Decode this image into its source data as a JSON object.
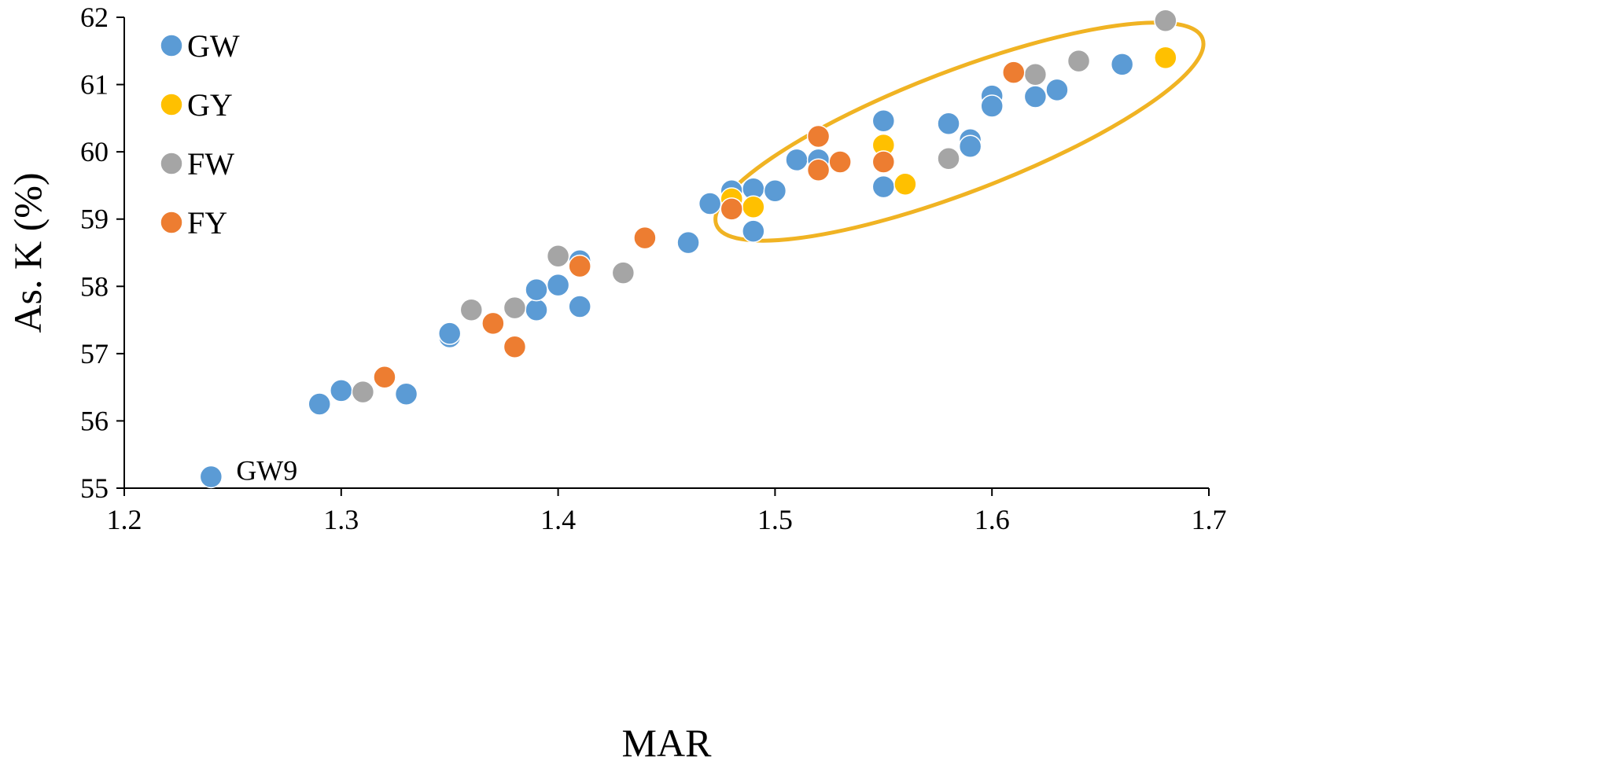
{
  "chart_data": {
    "type": "scatter",
    "title": "",
    "xlabel": "MAR",
    "ylabel": "As. K (%)",
    "xlim": [
      1.2,
      1.7
    ],
    "ylim": [
      55,
      62
    ],
    "x_tick_labels": [
      "1.2",
      "1.3",
      "1.4",
      "1.5",
      "1.6",
      "1.7"
    ],
    "y_tick_labels": [
      "55",
      "56",
      "57",
      "58",
      "59",
      "60",
      "61",
      "62"
    ],
    "grid": false,
    "legend_position": "top-left",
    "series": [
      {
        "name": "GW",
        "color": "#5B9BD5",
        "points": [
          {
            "x": 1.24,
            "y": 55.17
          },
          {
            "x": 1.29,
            "y": 56.25
          },
          {
            "x": 1.3,
            "y": 56.45
          },
          {
            "x": 1.33,
            "y": 56.4
          },
          {
            "x": 1.35,
            "y": 57.25
          },
          {
            "x": 1.35,
            "y": 57.3
          },
          {
            "x": 1.39,
            "y": 57.65
          },
          {
            "x": 1.39,
            "y": 57.95
          },
          {
            "x": 1.4,
            "y": 58.02
          },
          {
            "x": 1.41,
            "y": 57.7
          },
          {
            "x": 1.41,
            "y": 58.38
          },
          {
            "x": 1.46,
            "y": 58.65
          },
          {
            "x": 1.47,
            "y": 59.23
          },
          {
            "x": 1.48,
            "y": 59.42
          },
          {
            "x": 1.49,
            "y": 59.45
          },
          {
            "x": 1.49,
            "y": 58.82
          },
          {
            "x": 1.5,
            "y": 59.42
          },
          {
            "x": 1.51,
            "y": 59.88
          },
          {
            "x": 1.52,
            "y": 59.88
          },
          {
            "x": 1.55,
            "y": 60.46
          },
          {
            "x": 1.55,
            "y": 59.48
          },
          {
            "x": 1.58,
            "y": 60.42
          },
          {
            "x": 1.59,
            "y": 60.18
          },
          {
            "x": 1.59,
            "y": 60.08
          },
          {
            "x": 1.6,
            "y": 60.83
          },
          {
            "x": 1.6,
            "y": 60.68
          },
          {
            "x": 1.62,
            "y": 60.82
          },
          {
            "x": 1.63,
            "y": 60.92
          },
          {
            "x": 1.66,
            "y": 61.3
          }
        ]
      },
      {
        "name": "GY",
        "color": "#FFC000",
        "points": [
          {
            "x": 1.48,
            "y": 59.3
          },
          {
            "x": 1.49,
            "y": 59.18
          },
          {
            "x": 1.55,
            "y": 60.1
          },
          {
            "x": 1.56,
            "y": 59.52
          },
          {
            "x": 1.68,
            "y": 61.4
          }
        ]
      },
      {
        "name": "FW",
        "color": "#A5A5A5",
        "points": [
          {
            "x": 1.31,
            "y": 56.43
          },
          {
            "x": 1.36,
            "y": 57.65
          },
          {
            "x": 1.38,
            "y": 57.68
          },
          {
            "x": 1.4,
            "y": 58.45
          },
          {
            "x": 1.43,
            "y": 58.2
          },
          {
            "x": 1.58,
            "y": 59.9
          },
          {
            "x": 1.62,
            "y": 61.15
          },
          {
            "x": 1.64,
            "y": 61.35
          },
          {
            "x": 1.68,
            "y": 61.95
          }
        ]
      },
      {
        "name": "FY",
        "color": "#ED7D31",
        "points": [
          {
            "x": 1.32,
            "y": 56.65
          },
          {
            "x": 1.37,
            "y": 57.45
          },
          {
            "x": 1.38,
            "y": 57.1
          },
          {
            "x": 1.41,
            "y": 58.3
          },
          {
            "x": 1.44,
            "y": 58.72
          },
          {
            "x": 1.48,
            "y": 59.15
          },
          {
            "x": 1.52,
            "y": 60.23
          },
          {
            "x": 1.52,
            "y": 59.73
          },
          {
            "x": 1.53,
            "y": 59.85
          },
          {
            "x": 1.55,
            "y": 59.85
          },
          {
            "x": 1.61,
            "y": 61.18
          }
        ]
      }
    ],
    "annotations": [
      {
        "text": "GW9",
        "x": 1.24,
        "y": 55.17
      }
    ],
    "highlight_ellipse": {
      "color": "#F0B323",
      "center_x": 1.585,
      "center_y": 60.3,
      "radius_x": 0.12,
      "radius_y": 0.9,
      "rotation_deg": -21
    }
  }
}
